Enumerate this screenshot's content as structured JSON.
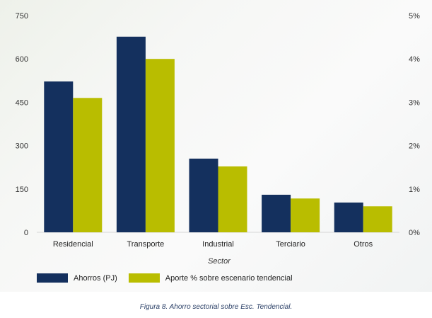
{
  "chart_data": {
    "type": "bar",
    "categories": [
      "Residencial",
      "Transporte",
      "Industrial",
      "Terciario",
      "Otros"
    ],
    "series": [
      {
        "name": "Ahorros (PJ)",
        "axis": "left",
        "color": "#14305e",
        "values": [
          522,
          677,
          255,
          130,
          103
        ]
      },
      {
        "name": "Aporte % sobre escenario tendencial",
        "axis": "right",
        "color": "#b9bd00",
        "values": [
          3.1,
          4.0,
          1.52,
          0.78,
          0.6
        ]
      }
    ],
    "xlabel": "Sector",
    "ylim_left": [
      0,
      750
    ],
    "yticks_left": [
      "0",
      "150",
      "300",
      "450",
      "600",
      "750"
    ],
    "ylim_right": [
      0,
      5
    ],
    "yticks_right": [
      "0%",
      "1%",
      "2%",
      "3%",
      "4%",
      "5%"
    ],
    "legend_position": "bottom-left",
    "grid": false
  },
  "caption": "Figura 8. Ahorro sectorial sobre Esc. Tendencial."
}
